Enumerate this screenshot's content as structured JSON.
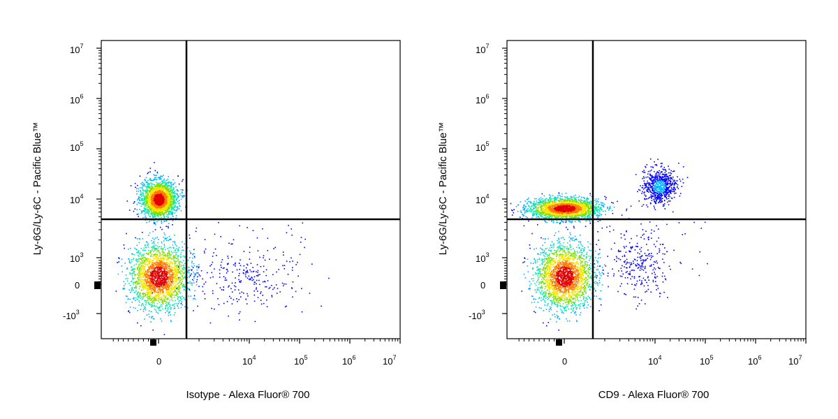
{
  "chart_data": [
    {
      "type": "scatter",
      "style": "flow-cytometry-density-dot-plot",
      "xlabel": "Isotype - Alexa Fluor® 700",
      "ylabel": "Ly-6G/Ly-6C - Pacific Blue™",
      "x_scale": "biexponential",
      "y_scale": "biexponential",
      "x_ticks": [
        {
          "base": "0",
          "exp": ""
        },
        {
          "base": "10",
          "exp": "4"
        },
        {
          "base": "10",
          "exp": "5"
        },
        {
          "base": "10",
          "exp": "6"
        },
        {
          "base": "10",
          "exp": "7"
        }
      ],
      "y_ticks": [
        {
          "base": "10",
          "exp": "7"
        },
        {
          "base": "10",
          "exp": "6"
        },
        {
          "base": "10",
          "exp": "5"
        },
        {
          "base": "10",
          "exp": "4"
        },
        {
          "base": "10",
          "exp": "3"
        },
        {
          "base": "0",
          "exp": ""
        },
        {
          "base": "-10",
          "exp": "3"
        }
      ],
      "quadrant_gate": {
        "x": 1500,
        "y": 5000
      },
      "populations": [
        {
          "x_center": 0,
          "y_center": 10000,
          "spread": "tight",
          "density": "high"
        },
        {
          "x_center": 0,
          "y_center": 300,
          "spread": "broad",
          "density": "high"
        },
        {
          "x_center": 8000,
          "y_center": 200,
          "spread": "sparse",
          "density": "low"
        }
      ],
      "density_colors": [
        "#0000ff",
        "#00b4ff",
        "#00e8b0",
        "#7be000",
        "#f4e400",
        "#ff7a00",
        "#e00000"
      ]
    },
    {
      "type": "scatter",
      "style": "flow-cytometry-density-dot-plot",
      "xlabel": "CD9 - Alexa Fluor® 700",
      "ylabel": "Ly-6G/Ly-6C - Pacific Blue™",
      "x_scale": "biexponential",
      "y_scale": "biexponential",
      "x_ticks": [
        {
          "base": "0",
          "exp": ""
        },
        {
          "base": "10",
          "exp": "4"
        },
        {
          "base": "10",
          "exp": "5"
        },
        {
          "base": "10",
          "exp": "6"
        },
        {
          "base": "10",
          "exp": "7"
        }
      ],
      "y_ticks": [
        {
          "base": "10",
          "exp": "7"
        },
        {
          "base": "10",
          "exp": "6"
        },
        {
          "base": "10",
          "exp": "5"
        },
        {
          "base": "10",
          "exp": "4"
        },
        {
          "base": "10",
          "exp": "3"
        },
        {
          "base": "0",
          "exp": ""
        },
        {
          "base": "-10",
          "exp": "3"
        }
      ],
      "quadrant_gate": {
        "x": 1500,
        "y": 5000
      },
      "populations": [
        {
          "x_center": 0,
          "y_center": 7000,
          "spread": "elongated",
          "density": "high"
        },
        {
          "x_center": 12000,
          "y_center": 18000,
          "spread": "tight",
          "density": "medium"
        },
        {
          "x_center": 0,
          "y_center": 300,
          "spread": "broad",
          "density": "high"
        },
        {
          "x_center": 5000,
          "y_center": 800,
          "spread": "broad",
          "density": "low"
        }
      ],
      "density_colors": [
        "#0000ff",
        "#00b4ff",
        "#00e8b0",
        "#7be000",
        "#f4e400",
        "#ff7a00",
        "#e00000"
      ]
    }
  ]
}
